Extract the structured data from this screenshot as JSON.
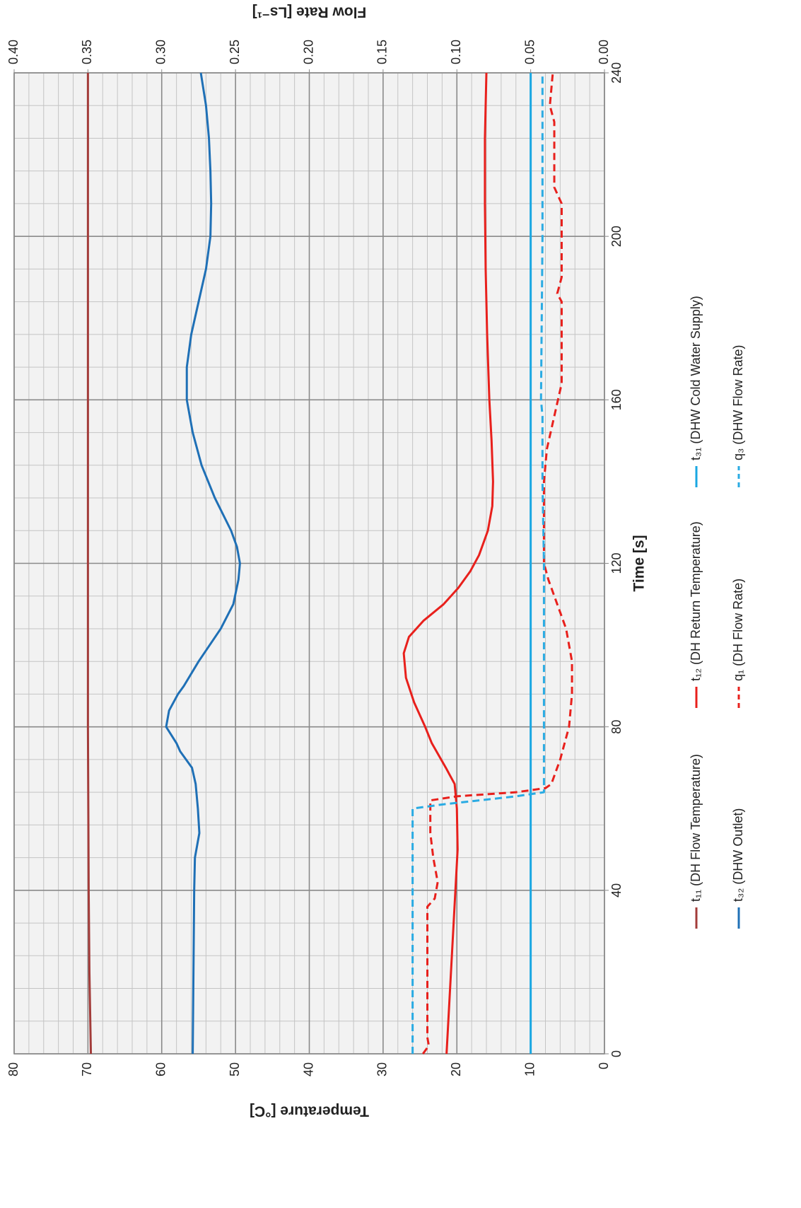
{
  "chart_data": {
    "type": "line",
    "xlabel": "Time [s]",
    "ylabel": "Temperature [°C]",
    "y2label": "Flow Rate [Ls⁻¹]",
    "xlim": [
      0,
      240
    ],
    "xticks": [
      0,
      40,
      80,
      120,
      160,
      200,
      240
    ],
    "ylim": [
      0,
      80
    ],
    "yticks": [
      0,
      10,
      20,
      30,
      40,
      50,
      60,
      70,
      80
    ],
    "y2lim": [
      0,
      0.4
    ],
    "y2ticks": [
      {
        "value": 0,
        "label": "0.00"
      },
      {
        "value": 0.05,
        "label": "0.05"
      },
      {
        "value": 0.1,
        "label": "0.10"
      },
      {
        "value": 0.15,
        "label": "0.15"
      },
      {
        "value": 0.2,
        "label": "0.20"
      },
      {
        "value": 0.25,
        "label": "0.25"
      },
      {
        "value": 0.3,
        "label": "0.30"
      },
      {
        "value": 0.35,
        "label": "0.35"
      },
      {
        "value": 0.4,
        "label": "0.40"
      }
    ],
    "grid": true,
    "minor_grid": {
      "x": 8,
      "y": 2
    },
    "rotation": -90,
    "legend": "bottom",
    "series": [
      {
        "name": "t₁₁ (DH Flow Temperature)",
        "color": "#a33c3a",
        "dashed": false,
        "x": [
          0,
          20,
          40,
          80,
          120,
          160,
          200,
          240
        ],
        "values": [
          69.6,
          69.8,
          69.9,
          70,
          70,
          70,
          70,
          70
        ]
      },
      {
        "name": "t₁₂ (DH Return Temperature)",
        "color": "#e8201c",
        "dashed": false,
        "x": [
          0,
          20,
          40,
          50,
          60,
          66,
          70,
          76,
          80,
          86,
          92,
          98,
          102,
          106,
          110,
          114,
          118,
          122,
          128,
          134,
          140,
          150,
          160,
          176,
          192,
          208,
          224,
          240
        ],
        "values": [
          21.4,
          20.8,
          20.2,
          19.9,
          20.0,
          20.3,
          21.5,
          23.4,
          24.3,
          25.8,
          26.9,
          27.2,
          26.5,
          24.5,
          21.8,
          19.8,
          18.2,
          17.0,
          15.8,
          15.2,
          15.1,
          15.3,
          15.6,
          15.9,
          16.1,
          16.2,
          16.2,
          16.0
        ]
      },
      {
        "name": "t₃₁ (DHW Cold Water Supply)",
        "color": "#1aa7e2",
        "dashed": false,
        "x": [
          0,
          240
        ],
        "values": [
          10,
          10
        ]
      },
      {
        "name": "t₃₂ (DHW Outlet)",
        "color": "#1f70b6",
        "dashed": false,
        "x": [
          0,
          20,
          40,
          48,
          54,
          60,
          66,
          70,
          74,
          76,
          80,
          84,
          88,
          90,
          96,
          104,
          110,
          116,
          120,
          124,
          128,
          136,
          144,
          152,
          160,
          168,
          176,
          184,
          192,
          200,
          208,
          216,
          224,
          232,
          240
        ],
        "values": [
          55.8,
          55.7,
          55.6,
          55.5,
          54.9,
          55.1,
          55.4,
          55.9,
          57.5,
          58.0,
          59.4,
          59.0,
          57.8,
          57.0,
          55.0,
          52.0,
          50.3,
          49.6,
          49.4,
          49.8,
          50.6,
          52.8,
          54.6,
          55.8,
          56.6,
          56.6,
          56.0,
          55.0,
          54.0,
          53.4,
          53.3,
          53.4,
          53.6,
          54.0,
          54.7
        ]
      },
      {
        "name": "q₁ (DH Flow Rate)",
        "color": "#e8201c",
        "dashed": true,
        "axis": "y2",
        "x": [
          0,
          2,
          4,
          36,
          38,
          42,
          48,
          54,
          62,
          63,
          64,
          65,
          66,
          72,
          80,
          88,
          96,
          104,
          112,
          116,
          120,
          140,
          148,
          156,
          164,
          184,
          186,
          190,
          208,
          212,
          228,
          232,
          240
        ],
        "values": [
          0.123,
          0.119,
          0.12,
          0.12,
          0.115,
          0.113,
          0.116,
          0.118,
          0.118,
          0.1,
          0.06,
          0.04,
          0.036,
          0.03,
          0.024,
          0.022,
          0.022,
          0.026,
          0.034,
          0.038,
          0.041,
          0.041,
          0.039,
          0.034,
          0.029,
          0.029,
          0.032,
          0.029,
          0.029,
          0.034,
          0.034,
          0.037,
          0.035
        ]
      },
      {
        "name": "q₃ (DHW Flow Rate)",
        "color": "#2aabe3",
        "dashed": true,
        "axis": "y2",
        "x": [
          0,
          60,
          61,
          63,
          64,
          80,
          120,
          140,
          156,
          160,
          200,
          240
        ],
        "values": [
          0.13,
          0.13,
          0.11,
          0.06,
          0.041,
          0.041,
          0.041,
          0.042,
          0.042,
          0.043,
          0.042,
          0.042
        ]
      }
    ]
  }
}
